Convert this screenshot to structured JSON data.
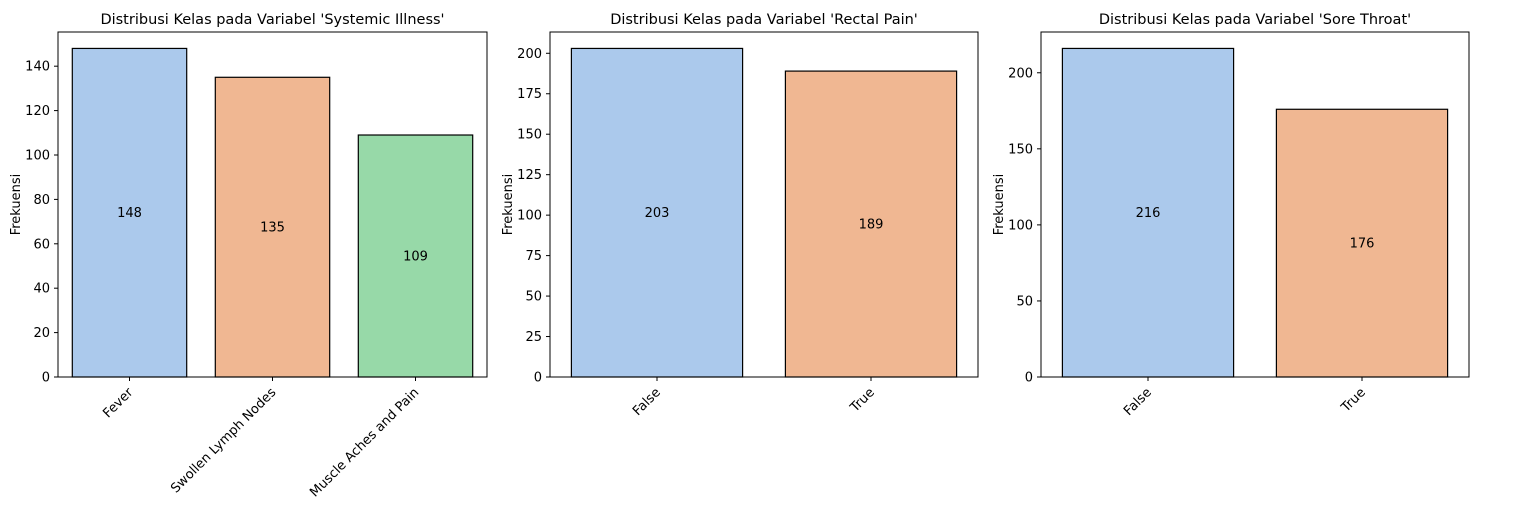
{
  "chart_data": [
    {
      "type": "bar",
      "title": "Distribusi Kelas pada Variabel 'Systemic Illness'",
      "xlabel": "",
      "ylabel": "Frekuensi",
      "categories": [
        "Fever",
        "Swollen Lymph Nodes",
        "Muscle Aches and Pain"
      ],
      "values": [
        148,
        135,
        109
      ],
      "data_labels": [
        "148",
        "135",
        "109"
      ],
      "colors": [
        "#abc9ec",
        "#f0b792",
        "#97d9a8"
      ],
      "ylim": [
        0,
        155.4
      ],
      "yticks": [
        0,
        20,
        40,
        60,
        80,
        100,
        120,
        140
      ],
      "grid": false
    },
    {
      "type": "bar",
      "title": "Distribusi Kelas pada Variabel 'Rectal Pain'",
      "xlabel": "",
      "ylabel": "Frekuensi",
      "categories": [
        "False",
        "True"
      ],
      "values": [
        203,
        189
      ],
      "data_labels": [
        "203",
        "189"
      ],
      "colors": [
        "#abc9ec",
        "#f0b792"
      ],
      "ylim": [
        0,
        213.15
      ],
      "yticks": [
        0,
        25,
        50,
        75,
        100,
        125,
        150,
        175,
        200
      ],
      "grid": false
    },
    {
      "type": "bar",
      "title": "Distribusi Kelas pada Variabel 'Sore Throat'",
      "xlabel": "",
      "ylabel": "Frekuensi",
      "categories": [
        "False",
        "True"
      ],
      "values": [
        216,
        176
      ],
      "data_labels": [
        "216",
        "176"
      ],
      "colors": [
        "#abc9ec",
        "#f0b792"
      ],
      "ylim": [
        0,
        226.8
      ],
      "yticks": [
        0,
        50,
        100,
        150,
        200
      ],
      "grid": false
    }
  ]
}
